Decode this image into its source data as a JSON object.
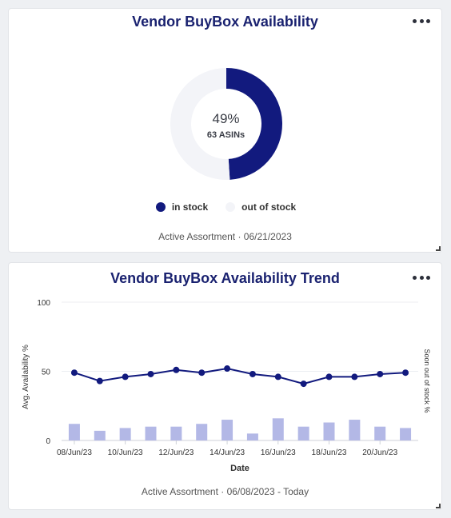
{
  "donut_card": {
    "title": "Vendor BuyBox Availability",
    "percent_label": "49%",
    "sub_label": "63 ASINs",
    "legend": [
      {
        "label": "in stock",
        "color": "#121a7e"
      },
      {
        "label": "out of stock",
        "color": "#f3f4f8"
      }
    ],
    "footer": "Active Assortment · 06/21/2023",
    "menu_icon": "more-horizontal-icon"
  },
  "trend_card": {
    "title": "Vendor BuyBox Availability Trend",
    "footer": "Active Assortment · 06/08/2023 - Today",
    "menu_icon": "more-horizontal-icon"
  },
  "chart_data": [
    {
      "type": "pie",
      "title": "Vendor BuyBox Availability",
      "labels": [
        "in stock",
        "out of stock"
      ],
      "values": [
        49,
        51
      ],
      "colors": [
        "#121a7e",
        "#f3f4f8"
      ]
    },
    {
      "type": "line",
      "title": "Vendor BuyBox Availability Trend",
      "xlabel": "Date",
      "ylabel": "Avg. Availability %",
      "y2label": "Soon out of stock %",
      "ylim": [
        0,
        100
      ],
      "yticks": [
        0,
        50,
        100
      ],
      "x": [
        "08/Jun/23",
        "09/Jun/23",
        "10/Jun/23",
        "11/Jun/23",
        "12/Jun/23",
        "13/Jun/23",
        "14/Jun/23",
        "15/Jun/23",
        "16/Jun/23",
        "17/Jun/23",
        "18/Jun/23",
        "19/Jun/23",
        "20/Jun/23",
        "21/Jun/23"
      ],
      "xtick_labels": [
        "08/Jun/23",
        "10/Jun/23",
        "12/Jun/23",
        "14/Jun/23",
        "16/Jun/23",
        "18/Jun/23",
        "20/Jun/23"
      ],
      "series": [
        {
          "kind": "line",
          "color": "#121a7e",
          "values": [
            49,
            43,
            46,
            48,
            51,
            49,
            52,
            48,
            46,
            41,
            46,
            46,
            48,
            49
          ]
        },
        {
          "kind": "bar",
          "color": "#b3b8e6",
          "values": [
            12,
            7,
            9,
            10,
            10,
            12,
            15,
            5,
            16,
            10,
            13,
            15,
            10,
            9
          ]
        }
      ],
      "grid": true
    }
  ]
}
